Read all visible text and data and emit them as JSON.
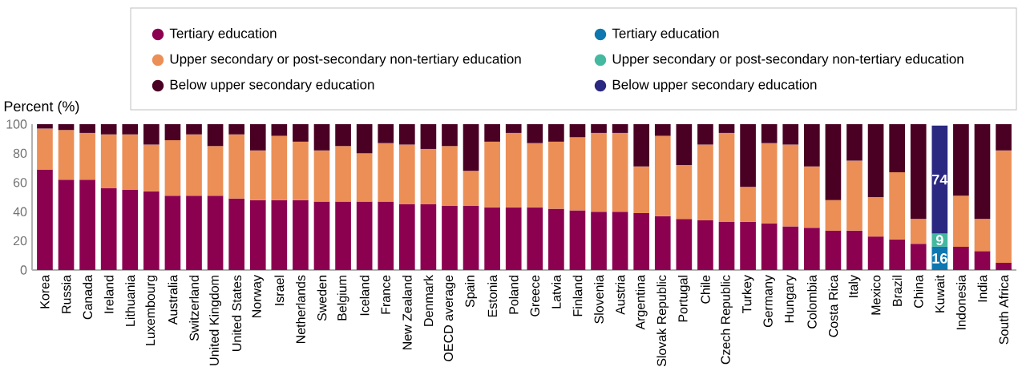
{
  "chart_data": {
    "type": "bar",
    "stacked": true,
    "ylabel": "Percent (%)",
    "legend": "top",
    "categories": [
      "Korea",
      "Russia",
      "Canada",
      "Ireland",
      "Lithuania",
      "Luxembourg",
      "Australia",
      "Switzerland",
      "United Kingdom",
      "United States",
      "Norway",
      "Israel",
      "Netherlands",
      "Sweden",
      "Belgium",
      "Iceland",
      "France",
      "New Zealand",
      "Denmark",
      "OECD average",
      "Spain",
      "Estonia",
      "Poland",
      "Greece",
      "Latvia",
      "Finland",
      "Slovenia",
      "Austria",
      "Argentina",
      "Slovak Republic",
      "Portugal",
      "Chile",
      "Czech Republic",
      "Turkey",
      "Germany",
      "Hungary",
      "Colombia",
      "Costa Rica",
      "Italy",
      "Mexico",
      "Brazil",
      "China",
      "Kuwait",
      "Indonesia",
      "India",
      "South Africa"
    ],
    "ylim": [
      0,
      100
    ],
    "yticks": [
      0,
      20,
      40,
      60,
      80,
      100
    ],
    "series": [
      {
        "name": "Tertiary education",
        "color": "#8c0050",
        "values": [
          69,
          62,
          62,
          56,
          55,
          54,
          51,
          51,
          51,
          49,
          48,
          48,
          48,
          47,
          47,
          47,
          47,
          45,
          45,
          44,
          44,
          43,
          43,
          43,
          42,
          41,
          40,
          40,
          39,
          37,
          35,
          34,
          33,
          33,
          32,
          30,
          29,
          27,
          27,
          23,
          21,
          18,
          null,
          16,
          13,
          5
        ]
      },
      {
        "name": "Upper secondary or post-secondary non-tertiary education",
        "color": "#eb8f57",
        "values": [
          28,
          34,
          32,
          37,
          38,
          32,
          38,
          42,
          34,
          44,
          34,
          44,
          40,
          35,
          38,
          33,
          40,
          41,
          38,
          41,
          24,
          45,
          51,
          44,
          46,
          50,
          54,
          54,
          32,
          55,
          37,
          52,
          61,
          24,
          55,
          56,
          42,
          21,
          48,
          27,
          46,
          17,
          null,
          35,
          22,
          77
        ]
      },
      {
        "name": "Below upper secondary education",
        "color": "#4a0022",
        "values": [
          3,
          4,
          6,
          7,
          7,
          14,
          11,
          7,
          15,
          7,
          18,
          8,
          12,
          18,
          15,
          20,
          13,
          14,
          17,
          15,
          32,
          12,
          6,
          13,
          12,
          9,
          6,
          6,
          29,
          8,
          28,
          14,
          6,
          43,
          13,
          14,
          29,
          52,
          25,
          50,
          33,
          65,
          null,
          49,
          65,
          18
        ]
      },
      {
        "name": "Tertiary education",
        "color": "#0e77b0",
        "values": [
          null,
          null,
          null,
          null,
          null,
          null,
          null,
          null,
          null,
          null,
          null,
          null,
          null,
          null,
          null,
          null,
          null,
          null,
          null,
          null,
          null,
          null,
          null,
          null,
          null,
          null,
          null,
          null,
          null,
          null,
          null,
          null,
          null,
          null,
          null,
          null,
          null,
          null,
          null,
          null,
          null,
          null,
          16,
          null,
          null,
          null
        ],
        "value_labels": [
          null,
          null,
          null,
          null,
          null,
          null,
          null,
          null,
          null,
          null,
          null,
          null,
          null,
          null,
          null,
          null,
          null,
          null,
          null,
          null,
          null,
          null,
          null,
          null,
          null,
          null,
          null,
          null,
          null,
          null,
          null,
          null,
          null,
          null,
          null,
          null,
          null,
          null,
          null,
          null,
          null,
          null,
          "16",
          null,
          null,
          null
        ]
      },
      {
        "name": "Upper secondary or post-secondary non-tertiary education",
        "color": "#45b8a0",
        "values": [
          null,
          null,
          null,
          null,
          null,
          null,
          null,
          null,
          null,
          null,
          null,
          null,
          null,
          null,
          null,
          null,
          null,
          null,
          null,
          null,
          null,
          null,
          null,
          null,
          null,
          null,
          null,
          null,
          null,
          null,
          null,
          null,
          null,
          null,
          null,
          null,
          null,
          null,
          null,
          null,
          null,
          null,
          9,
          null,
          null,
          null
        ],
        "value_labels": [
          null,
          null,
          null,
          null,
          null,
          null,
          null,
          null,
          null,
          null,
          null,
          null,
          null,
          null,
          null,
          null,
          null,
          null,
          null,
          null,
          null,
          null,
          null,
          null,
          null,
          null,
          null,
          null,
          null,
          null,
          null,
          null,
          null,
          null,
          null,
          null,
          null,
          null,
          null,
          null,
          null,
          null,
          "9",
          null,
          null,
          null
        ]
      },
      {
        "name": "Below upper secondary education",
        "color": "#2a2880",
        "values": [
          null,
          null,
          null,
          null,
          null,
          null,
          null,
          null,
          null,
          null,
          null,
          null,
          null,
          null,
          null,
          null,
          null,
          null,
          null,
          null,
          null,
          null,
          null,
          null,
          null,
          null,
          null,
          null,
          null,
          null,
          null,
          null,
          null,
          null,
          null,
          null,
          null,
          null,
          null,
          null,
          null,
          null,
          74,
          null,
          null,
          null
        ],
        "value_labels": [
          null,
          null,
          null,
          null,
          null,
          null,
          null,
          null,
          null,
          null,
          null,
          null,
          null,
          null,
          null,
          null,
          null,
          null,
          null,
          null,
          null,
          null,
          null,
          null,
          null,
          null,
          null,
          null,
          null,
          null,
          null,
          null,
          null,
          null,
          null,
          null,
          null,
          null,
          null,
          null,
          null,
          null,
          "74",
          null,
          null,
          null
        ]
      }
    ]
  }
}
